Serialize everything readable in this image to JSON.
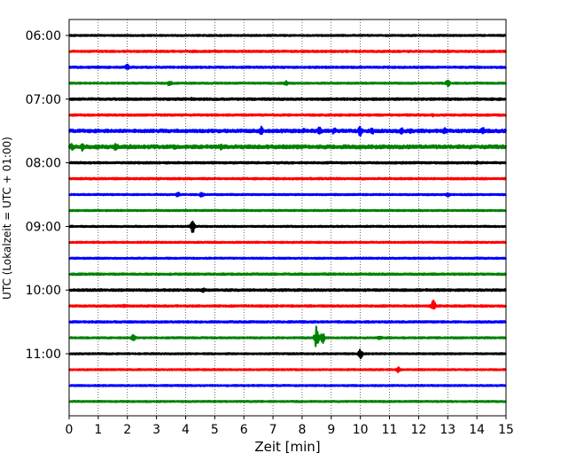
{
  "chart_data": {
    "type": "line",
    "title": "",
    "xlabel": "Zeit  [min]",
    "ylabel": "UTC (Lokalzeit = UTC + 01:00)",
    "xlim": [
      0,
      15
    ],
    "x_ticks": [
      "0",
      "1",
      "2",
      "3",
      "4",
      "5",
      "6",
      "7",
      "8",
      "9",
      "10",
      "11",
      "12",
      "13",
      "14",
      "15"
    ],
    "y_tick_labels": [
      "06:00",
      "07:00",
      "08:00",
      "09:00",
      "10:00",
      "11:00"
    ],
    "grid_vertical": true,
    "colors": [
      "#000000",
      "#ff0000",
      "#0000ff",
      "#008000"
    ],
    "rows": [
      {
        "time": "06:00",
        "color": "#000000",
        "amplitude": 0.08,
        "events": []
      },
      {
        "time": "06:15",
        "color": "#ff0000",
        "amplitude": 0.1,
        "events": []
      },
      {
        "time": "06:30",
        "color": "#0000ff",
        "amplitude": 0.1,
        "events": [
          {
            "x": 2.0,
            "amp": 0.5
          }
        ]
      },
      {
        "time": "06:45",
        "color": "#008000",
        "amplitude": 0.08,
        "events": [
          {
            "x": 3.45,
            "amp": 0.45
          },
          {
            "x": 7.45,
            "amp": 0.3
          },
          {
            "x": 13.0,
            "amp": 0.45
          }
        ]
      },
      {
        "time": "07:00",
        "color": "#000000",
        "amplitude": 0.12,
        "events": [
          {
            "x": 4.2,
            "amp": 0.25
          }
        ]
      },
      {
        "time": "07:15",
        "color": "#ff0000",
        "amplitude": 0.1,
        "events": [
          {
            "x": 12.5,
            "amp": 0.2
          }
        ]
      },
      {
        "time": "07:30",
        "color": "#0000ff",
        "amplitude": 0.18,
        "events": [
          {
            "x": 6.6,
            "amp": 0.55
          },
          {
            "x": 7.3,
            "amp": 0.3
          },
          {
            "x": 8.05,
            "amp": 0.4
          },
          {
            "x": 8.6,
            "amp": 0.6
          },
          {
            "x": 9.1,
            "amp": 0.5
          },
          {
            "x": 10.0,
            "amp": 0.75
          },
          {
            "x": 10.4,
            "amp": 0.5
          },
          {
            "x": 11.4,
            "amp": 0.55
          },
          {
            "x": 11.7,
            "amp": 0.4
          },
          {
            "x": 12.9,
            "amp": 0.65
          },
          {
            "x": 14.2,
            "amp": 0.5
          }
        ]
      },
      {
        "time": "07:45",
        "color": "#008000",
        "amplitude": 0.2,
        "events": [
          {
            "x": 0.1,
            "amp": 0.6
          },
          {
            "x": 0.45,
            "amp": 0.5
          },
          {
            "x": 1.0,
            "amp": 0.4
          },
          {
            "x": 1.6,
            "amp": 0.6
          },
          {
            "x": 2.1,
            "amp": 0.3
          },
          {
            "x": 3.6,
            "amp": 0.35
          },
          {
            "x": 5.2,
            "amp": 0.4
          },
          {
            "x": 10.8,
            "amp": 0.3
          }
        ]
      },
      {
        "time": "08:00",
        "color": "#000000",
        "amplitude": 0.1,
        "events": [
          {
            "x": 14.0,
            "amp": 0.25
          }
        ]
      },
      {
        "time": "08:15",
        "color": "#ff0000",
        "amplitude": 0.1,
        "events": []
      },
      {
        "time": "08:30",
        "color": "#0000ff",
        "amplitude": 0.08,
        "events": [
          {
            "x": 3.75,
            "amp": 0.35
          },
          {
            "x": 4.55,
            "amp": 0.35
          },
          {
            "x": 13.0,
            "amp": 0.3
          }
        ]
      },
      {
        "time": "08:45",
        "color": "#008000",
        "amplitude": 0.08,
        "events": []
      },
      {
        "time": "09:00",
        "color": "#000000",
        "amplitude": 0.08,
        "events": [
          {
            "x": 4.25,
            "amp": 0.95
          }
        ]
      },
      {
        "time": "09:15",
        "color": "#ff0000",
        "amplitude": 0.08,
        "events": []
      },
      {
        "time": "09:30",
        "color": "#0000ff",
        "amplitude": 0.08,
        "events": []
      },
      {
        "time": "09:45",
        "color": "#008000",
        "amplitude": 0.1,
        "events": []
      },
      {
        "time": "10:00",
        "color": "#000000",
        "amplitude": 0.12,
        "events": [
          {
            "x": 4.6,
            "amp": 0.3
          }
        ]
      },
      {
        "time": "10:15",
        "color": "#ff0000",
        "amplitude": 0.1,
        "events": [
          {
            "x": 1.9,
            "amp": 0.2
          },
          {
            "x": 12.5,
            "amp": 0.8
          }
        ]
      },
      {
        "time": "10:30",
        "color": "#0000ff",
        "amplitude": 0.1,
        "events": []
      },
      {
        "time": "10:45",
        "color": "#008000",
        "amplitude": 0.08,
        "events": [
          {
            "x": 2.2,
            "amp": 0.45
          },
          {
            "x": 8.5,
            "amp": 1.6
          },
          {
            "x": 8.7,
            "amp": 0.9
          },
          {
            "x": 10.65,
            "amp": 0.3
          }
        ]
      },
      {
        "time": "11:00",
        "color": "#000000",
        "amplitude": 0.08,
        "events": [
          {
            "x": 10.0,
            "amp": 0.7
          }
        ]
      },
      {
        "time": "11:15",
        "color": "#ff0000",
        "amplitude": 0.08,
        "events": [
          {
            "x": 11.3,
            "amp": 0.35
          }
        ]
      },
      {
        "time": "11:30",
        "color": "#0000ff",
        "amplitude": 0.08,
        "events": []
      },
      {
        "time": "11:45",
        "color": "#008000",
        "amplitude": 0.08,
        "events": []
      }
    ]
  }
}
